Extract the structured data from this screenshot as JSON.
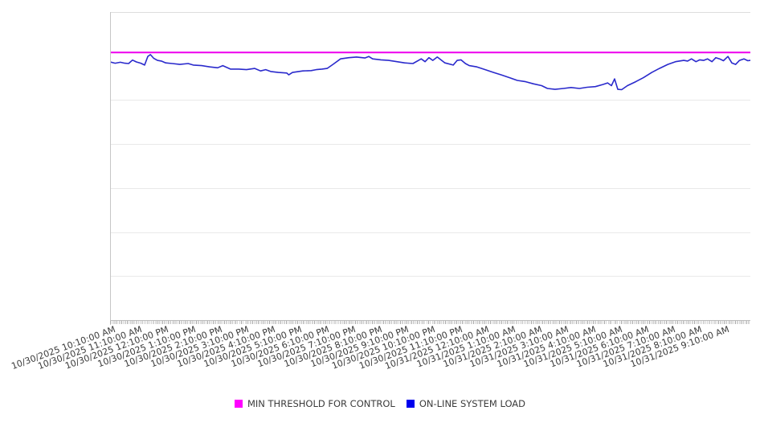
{
  "chart_data": {
    "type": "line",
    "title": "",
    "xlabel": "",
    "ylabel": "",
    "grid": "horizontal",
    "y_axis_tick_labels_visible": false,
    "ylim": [
      0,
      100
    ],
    "legend_position": "bottom-center",
    "x_tick_labels": [
      "10/30/2025 10:10:00 AM",
      "10/30/2025 11:10:00 AM",
      "10/30/2025 12:10:00 PM",
      "10/30/2025 1:10:00 PM",
      "10/30/2025 2:10:00 PM",
      "10/30/2025 3:10:00 PM",
      "10/30/2025 4:10:00 PM",
      "10/30/2025 5:10:00 PM",
      "10/30/2025 6:10:00 PM",
      "10/30/2025 7:10:00 PM",
      "10/30/2025 8:10:00 PM",
      "10/30/2025 9:10:00 PM",
      "10/30/2025 10:10:00 PM",
      "10/30/2025 11:10:00 PM",
      "10/31/2025 12:10:00 AM",
      "10/31/2025 1:10:00 AM",
      "10/31/2025 2:10:00 AM",
      "10/31/2025 3:10:00 AM",
      "10/31/2025 4:10:00 AM",
      "10/31/2025 5:10:00 AM",
      "10/31/2025 6:10:00 AM",
      "10/31/2025 7:10:00 AM",
      "10/31/2025 8:10:00 AM",
      "10/31/2025 9:10:00 AM"
    ],
    "series": [
      {
        "name": "MIN THRESHOLD FOR CONTROL",
        "type": "threshold",
        "color": "#ee00ee",
        "value": 86.9
      },
      {
        "name": "ON-LINE SYSTEM LOAD",
        "type": "line",
        "color": "#2a2acc",
        "points": [
          [
            0.0,
            83.8
          ],
          [
            0.008,
            83.4
          ],
          [
            0.016,
            83.7
          ],
          [
            0.023,
            83.4
          ],
          [
            0.029,
            83.3
          ],
          [
            0.035,
            84.4
          ],
          [
            0.041,
            83.8
          ],
          [
            0.048,
            83.4
          ],
          [
            0.054,
            82.8
          ],
          [
            0.059,
            85.6
          ],
          [
            0.063,
            86.2
          ],
          [
            0.068,
            85.0
          ],
          [
            0.074,
            84.3
          ],
          [
            0.08,
            84.1
          ],
          [
            0.087,
            83.5
          ],
          [
            0.097,
            83.3
          ],
          [
            0.109,
            83.0
          ],
          [
            0.122,
            83.3
          ],
          [
            0.13,
            82.8
          ],
          [
            0.143,
            82.6
          ],
          [
            0.156,
            82.2
          ],
          [
            0.168,
            81.9
          ],
          [
            0.176,
            82.6
          ],
          [
            0.188,
            81.5
          ],
          [
            0.201,
            81.5
          ],
          [
            0.213,
            81.3
          ],
          [
            0.226,
            81.7
          ],
          [
            0.235,
            80.9
          ],
          [
            0.243,
            81.3
          ],
          [
            0.251,
            80.7
          ],
          [
            0.263,
            80.4
          ],
          [
            0.276,
            80.2
          ],
          [
            0.279,
            79.6
          ],
          [
            0.285,
            80.4
          ],
          [
            0.301,
            80.9
          ],
          [
            0.314,
            81.0
          ],
          [
            0.322,
            81.3
          ],
          [
            0.331,
            81.5
          ],
          [
            0.339,
            81.7
          ],
          [
            0.348,
            83.0
          ],
          [
            0.36,
            84.8
          ],
          [
            0.373,
            85.2
          ],
          [
            0.385,
            85.4
          ],
          [
            0.398,
            85.1
          ],
          [
            0.404,
            85.6
          ],
          [
            0.41,
            84.8
          ],
          [
            0.423,
            84.5
          ],
          [
            0.435,
            84.3
          ],
          [
            0.448,
            83.9
          ],
          [
            0.46,
            83.5
          ],
          [
            0.473,
            83.3
          ],
          [
            0.486,
            84.8
          ],
          [
            0.492,
            83.9
          ],
          [
            0.498,
            85.2
          ],
          [
            0.504,
            84.3
          ],
          [
            0.511,
            85.4
          ],
          [
            0.523,
            83.5
          ],
          [
            0.536,
            82.8
          ],
          [
            0.542,
            84.3
          ],
          [
            0.548,
            84.5
          ],
          [
            0.555,
            83.3
          ],
          [
            0.561,
            82.6
          ],
          [
            0.573,
            82.2
          ],
          [
            0.586,
            81.3
          ],
          [
            0.599,
            80.4
          ],
          [
            0.611,
            79.6
          ],
          [
            0.624,
            78.7
          ],
          [
            0.636,
            77.8
          ],
          [
            0.649,
            77.4
          ],
          [
            0.661,
            76.7
          ],
          [
            0.674,
            76.1
          ],
          [
            0.683,
            75.2
          ],
          [
            0.695,
            74.9
          ],
          [
            0.708,
            75.2
          ],
          [
            0.72,
            75.5
          ],
          [
            0.733,
            75.2
          ],
          [
            0.745,
            75.6
          ],
          [
            0.758,
            75.8
          ],
          [
            0.77,
            76.5
          ],
          [
            0.777,
            77.0
          ],
          [
            0.783,
            76.1
          ],
          [
            0.788,
            78.3
          ],
          [
            0.793,
            74.9
          ],
          [
            0.799,
            74.8
          ],
          [
            0.808,
            76.1
          ],
          [
            0.821,
            77.4
          ],
          [
            0.833,
            78.7
          ],
          [
            0.846,
            80.4
          ],
          [
            0.858,
            81.7
          ],
          [
            0.871,
            83.0
          ],
          [
            0.883,
            83.9
          ],
          [
            0.896,
            84.3
          ],
          [
            0.902,
            84.1
          ],
          [
            0.908,
            84.8
          ],
          [
            0.915,
            83.9
          ],
          [
            0.921,
            84.5
          ],
          [
            0.927,
            84.3
          ],
          [
            0.933,
            84.8
          ],
          [
            0.94,
            83.9
          ],
          [
            0.946,
            85.2
          ],
          [
            0.952,
            84.8
          ],
          [
            0.958,
            84.2
          ],
          [
            0.965,
            85.6
          ],
          [
            0.971,
            83.5
          ],
          [
            0.977,
            83.0
          ],
          [
            0.983,
            84.3
          ],
          [
            0.99,
            84.8
          ],
          [
            0.996,
            84.2
          ],
          [
            1.0,
            84.3
          ]
        ]
      }
    ]
  },
  "legend": {
    "items": [
      {
        "label": "MIN THRESHOLD FOR CONTROL",
        "color": "#ff00ff"
      },
      {
        "label": "ON-LINE SYSTEM LOAD",
        "color": "#0000ee"
      }
    ]
  }
}
